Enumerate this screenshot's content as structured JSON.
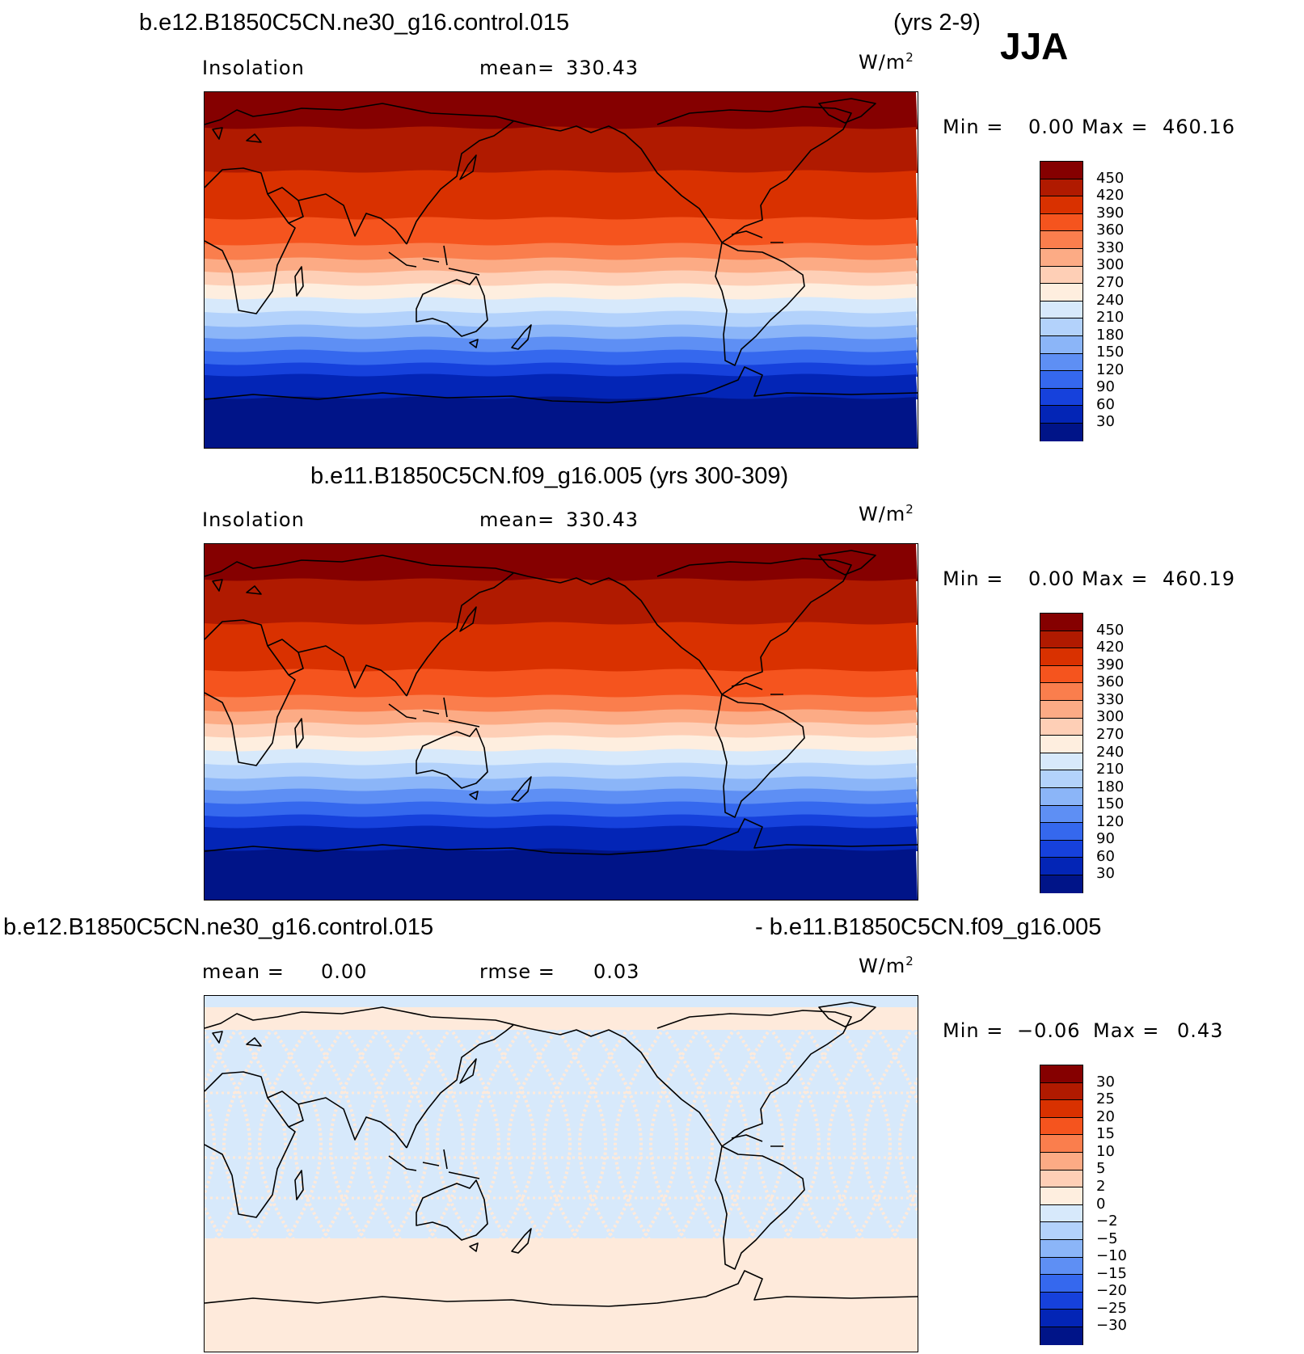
{
  "season": "JJA",
  "panels": [
    {
      "title": "b.e12.B1850C5CN.ne30_g16.control.015",
      "years": "(yrs 2-9)",
      "variable": "Insolation",
      "stat_label": "mean=",
      "stat_value": "330.43",
      "units": "W/m",
      "units_exp": "2",
      "min_label": "Min =",
      "min_value": "0.00",
      "max_label": "Max =",
      "max_value": "460.16"
    },
    {
      "title": "b.e11.B1850C5CN.f09_g16.005 (yrs 300-309)",
      "variable": "Insolation",
      "stat_label": "mean=",
      "stat_value": "330.43",
      "units": "W/m",
      "units_exp": "2",
      "min_label": "Min =",
      "min_value": "0.00",
      "max_label": "Max =",
      "max_value": "460.19"
    },
    {
      "title_left": "b.e12.B1850C5CN.ne30_g16.control.015",
      "title_right": "- b.e11.B1850C5CN.f09_g16.005",
      "mean_label": "mean =",
      "mean_value": "0.00",
      "rmse_label": "rmse =",
      "rmse_value": "0.03",
      "units": "W/m",
      "units_exp": "2",
      "min_label": "Min =",
      "min_value": "−0.06",
      "max_label": "Max =",
      "max_value": "0.43"
    }
  ],
  "colorbar_abs": {
    "colors": [
      "#850000",
      "#b01a00",
      "#d93100",
      "#f5541e",
      "#fa7e4d",
      "#fcab85",
      "#fecfb6",
      "#feeedf",
      "#d7e9fb",
      "#b3d2fb",
      "#8bb5f8",
      "#5e8ff4",
      "#3568ee",
      "#1641dc",
      "#0325b6",
      "#001488"
    ],
    "labels": [
      "450",
      "420",
      "390",
      "360",
      "330",
      "300",
      "270",
      "240",
      "210",
      "180",
      "150",
      "120",
      "90",
      "60",
      "30"
    ]
  },
  "colorbar_diff": {
    "colors": [
      "#850000",
      "#b01a00",
      "#d93100",
      "#f5541e",
      "#fa7e4d",
      "#fcab85",
      "#fecfb6",
      "#feeedf",
      "#d7e9fb",
      "#b3d2fb",
      "#8bb5f8",
      "#5e8ff4",
      "#3568ee",
      "#1641dc",
      "#0325b6",
      "#001488"
    ],
    "labels": [
      "30",
      "25",
      "20",
      "15",
      "10",
      "5",
      "2",
      "0",
      "−2",
      "−5",
      "−10",
      "−15",
      "−20",
      "−25",
      "−30"
    ]
  },
  "map_bands": [
    "#850000",
    "#b01a00",
    "#d93100",
    "#f5541e",
    "#fa7e4d",
    "#fcab85",
    "#fecfb6",
    "#feeedf",
    "#d7e9fb",
    "#b3d2fb",
    "#8bb5f8",
    "#5e8ff4",
    "#3568ee",
    "#1641dc",
    "#0325b6",
    "#001488"
  ],
  "diff_colors": {
    "pos": "#feeadb",
    "neg": "#d7e9fb"
  }
}
